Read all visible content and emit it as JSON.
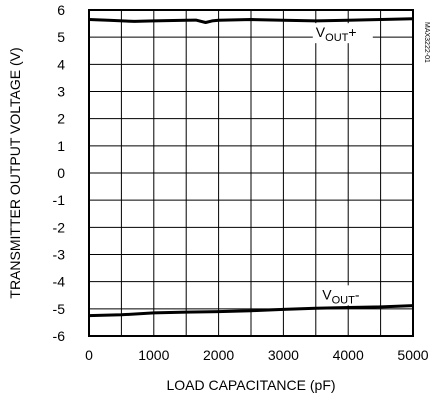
{
  "chart_data": {
    "type": "line",
    "xlabel": "LOAD CAPACITANCE (pF)",
    "ylabel": "TRANSMITTER OUTPUT VOLTAGE (V)",
    "side_id": "MAX3222-01",
    "xlim": [
      0,
      5000
    ],
    "ylim": [
      -6,
      6
    ],
    "grid": true,
    "x_ticks": [
      "0",
      "1000",
      "2000",
      "3000",
      "4000",
      "5000"
    ],
    "y_ticks": [
      "6",
      "5",
      "4",
      "3",
      "2",
      "1",
      "0",
      "-1",
      "-2",
      "-3",
      "-4",
      "-5",
      "-6"
    ],
    "series": [
      {
        "name": "V_OUT+",
        "label_main": "V",
        "label_sub": "OUT",
        "label_suffix": "+",
        "label_at": [
          3500,
          5.0
        ],
        "points": [
          [
            0,
            5.65
          ],
          [
            300,
            5.62
          ],
          [
            700,
            5.58
          ],
          [
            1000,
            5.6
          ],
          [
            1500,
            5.62
          ],
          [
            1650,
            5.63
          ],
          [
            1800,
            5.54
          ],
          [
            1900,
            5.6
          ],
          [
            2000,
            5.62
          ],
          [
            2500,
            5.65
          ],
          [
            3000,
            5.62
          ],
          [
            3500,
            5.6
          ],
          [
            4000,
            5.62
          ],
          [
            4500,
            5.65
          ],
          [
            5000,
            5.68
          ]
        ]
      },
      {
        "name": "V_OUT-",
        "label_main": "V",
        "label_sub": "OUT",
        "label_suffix": "-",
        "label_at": [
          3600,
          -4.65
        ],
        "points": [
          [
            0,
            -5.25
          ],
          [
            500,
            -5.22
          ],
          [
            1000,
            -5.15
          ],
          [
            1500,
            -5.12
          ],
          [
            2000,
            -5.1
          ],
          [
            2500,
            -5.07
          ],
          [
            3000,
            -5.02
          ],
          [
            3500,
            -4.98
          ],
          [
            4000,
            -4.95
          ],
          [
            4500,
            -4.93
          ],
          [
            5000,
            -4.88
          ]
        ]
      }
    ]
  }
}
